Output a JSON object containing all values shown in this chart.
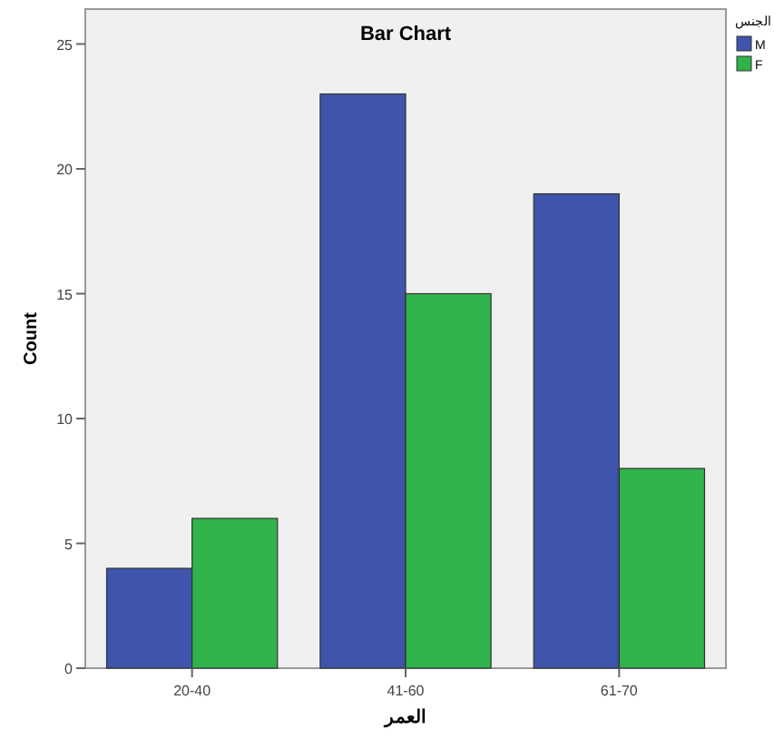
{
  "chart_data": {
    "type": "bar",
    "title": "Bar Chart",
    "xlabel": "العمر",
    "ylabel": "Count",
    "legend_title": "الجنس",
    "categories": [
      "20-40",
      "41-60",
      "61-70"
    ],
    "series": [
      {
        "name": "M",
        "color": "#3e55ab",
        "values": [
          4,
          23,
          19
        ]
      },
      {
        "name": "F",
        "color": "#2fb34a",
        "values": [
          6,
          15,
          8
        ]
      }
    ],
    "ylim": [
      0,
      26.4
    ],
    "yticks": [
      0,
      5,
      10,
      15,
      20,
      25
    ],
    "grid": false,
    "legend": "top right"
  }
}
